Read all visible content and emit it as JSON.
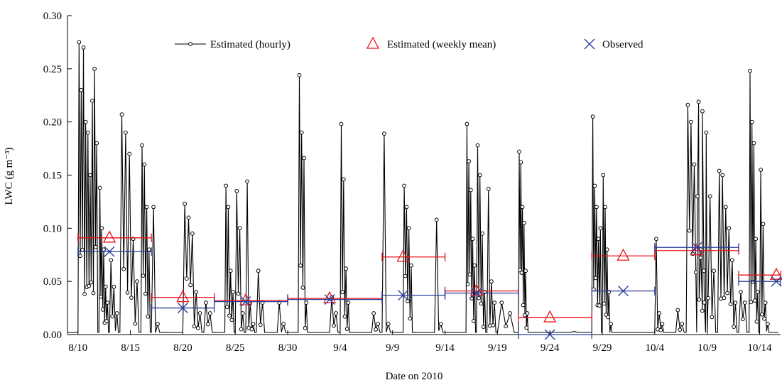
{
  "chart_data": {
    "type": "line",
    "xlabel": "Date on 2010",
    "ylabel": "LWC (g m⁻³)",
    "ylim": [
      0,
      0.3
    ],
    "xlim": [
      "2010-08-09",
      "2010-10-16"
    ],
    "yticks": [
      0.0,
      0.05,
      0.1,
      0.15,
      0.2,
      0.25,
      0.3
    ],
    "ytick_labels": [
      "0.00",
      "0.05",
      "0.10",
      "0.15",
      "0.20",
      "0.25",
      "0.30"
    ],
    "xticks": [
      "2010-08-10",
      "2010-08-15",
      "2010-08-20",
      "2010-08-25",
      "2010-08-30",
      "2010-09-04",
      "2010-09-09",
      "2010-09-14",
      "2010-09-19",
      "2010-09-24",
      "2010-09-29",
      "2010-10-04",
      "2010-10-09",
      "2010-10-14"
    ],
    "xtick_labels": [
      "8/10",
      "8/15",
      "8/20",
      "8/25",
      "8/30",
      "9/4",
      "9/9",
      "9/14",
      "9/19",
      "9/24",
      "9/29",
      "10/4",
      "10/9",
      "10/14"
    ],
    "grid": false,
    "legend_position": "top",
    "colors": {
      "hourly": "#000000",
      "weekly": "#e8121b",
      "observed": "#2a3f9c"
    },
    "series": [
      {
        "name": "Estimated (hourly)",
        "type": "line",
        "bursts": [
          {
            "start": "2010-08-10",
            "end": "2010-08-12",
            "peaks": [
              0.275,
              0.23,
              0.27,
              0.2,
              0.19,
              0.15,
              0.22,
              0.25,
              0.18
            ]
          },
          {
            "start": "2010-08-12",
            "end": "2010-08-13",
            "peaks": [
              0.138,
              0.1,
              0.08,
              0.045,
              0.03
            ]
          },
          {
            "start": "2010-08-13",
            "end": "2010-08-14",
            "peaks": [
              0.07,
              0.045,
              0.02
            ]
          },
          {
            "start": "2010-08-14",
            "end": "2010-08-16",
            "peaks": [
              0.207,
              0.19,
              0.17,
              0.09,
              0.05
            ]
          },
          {
            "start": "2010-08-16",
            "end": "2010-08-17",
            "peaks": [
              0.178,
              0.16,
              0.12,
              0.08
            ]
          },
          {
            "start": "2010-08-17",
            "end": "2010-08-18",
            "peaks": [
              0.12,
              0.01
            ]
          },
          {
            "start": "2010-08-20",
            "end": "2010-08-22",
            "peaks": [
              0.123,
              0.11,
              0.095,
              0.04,
              0.02
            ]
          },
          {
            "start": "2010-08-22",
            "end": "2010-08-23",
            "peaks": [
              0.03,
              0.02
            ]
          },
          {
            "start": "2010-08-24",
            "end": "2010-08-25",
            "peaks": [
              0.14,
              0.12,
              0.06,
              0.04
            ]
          },
          {
            "start": "2010-08-25",
            "end": "2010-08-26",
            "peaks": [
              0.135,
              0.1,
              0.02
            ]
          },
          {
            "start": "2010-08-26",
            "end": "2010-08-27",
            "peaks": [
              0.144,
              0.03,
              0.01
            ]
          },
          {
            "start": "2010-08-27",
            "end": "2010-08-28",
            "peaks": [
              0.06,
              0.03
            ]
          },
          {
            "start": "2010-08-29",
            "end": "2010-08-30",
            "peaks": [
              0.03,
              0.01
            ]
          },
          {
            "start": "2010-08-31",
            "end": "2010-09-01",
            "peaks": [
              0.244,
              0.19,
              0.166,
              0.03
            ]
          },
          {
            "start": "2010-09-03",
            "end": "2010-09-04",
            "peaks": [
              0.035,
              0.02
            ]
          },
          {
            "start": "2010-09-04",
            "end": "2010-09-05",
            "peaks": [
              0.198,
              0.146,
              0.062,
              0.03
            ]
          },
          {
            "start": "2010-09-07",
            "end": "2010-09-08",
            "peaks": [
              0.02,
              0.01
            ]
          },
          {
            "start": "2010-09-08",
            "end": "2010-09-09",
            "peaks": [
              0.189,
              0.01
            ]
          },
          {
            "start": "2010-09-10",
            "end": "2010-09-11",
            "peaks": [
              0.14,
              0.12,
              0.1,
              0.065
            ]
          },
          {
            "start": "2010-09-13",
            "end": "2010-09-14",
            "peaks": [
              0.108,
              0.01
            ]
          },
          {
            "start": "2010-09-16",
            "end": "2010-09-17",
            "peaks": [
              0.198,
              0.163,
              0.136,
              0.09,
              0.065
            ]
          },
          {
            "start": "2010-09-17",
            "end": "2010-09-18",
            "peaks": [
              0.178,
              0.15,
              0.095,
              0.04
            ]
          },
          {
            "start": "2010-09-18",
            "end": "2010-09-19",
            "peaks": [
              0.137,
              0.05,
              0.03
            ]
          },
          {
            "start": "2010-09-19",
            "end": "2010-09-21",
            "peaks": [
              0.03,
              0.02
            ]
          },
          {
            "start": "2010-09-21",
            "end": "2010-09-22",
            "peaks": [
              0.172,
              0.162,
              0.12,
              0.105,
              0.06,
              0.02
            ]
          },
          {
            "start": "2010-09-26",
            "end": "2010-09-27",
            "peaks": [
              0.003
            ]
          },
          {
            "start": "2010-09-28",
            "end": "2010-09-29",
            "peaks": [
              0.205,
              0.14,
              0.12,
              0.09,
              0.1
            ]
          },
          {
            "start": "2010-09-29",
            "end": "2010-09-30",
            "peaks": [
              0.15,
              0.12,
              0.08,
              0.04,
              0.01
            ]
          },
          {
            "start": "2010-10-04",
            "end": "2010-10-05",
            "peaks": [
              0.09,
              0.02,
              0.01
            ]
          },
          {
            "start": "2010-10-06",
            "end": "2010-10-07",
            "peaks": [
              0.023,
              0.01
            ]
          },
          {
            "start": "2010-10-07",
            "end": "2010-10-09",
            "peaks": [
              0.216,
              0.2,
              0.16,
              0.13,
              0.08,
              0.06
            ]
          },
          {
            "start": "2010-10-08",
            "end": "2010-10-10",
            "peaks": [
              0.219,
              0.21,
              0.19,
              0.13,
              0.06
            ]
          },
          {
            "start": "2010-10-10",
            "end": "2010-10-12",
            "peaks": [
              0.154,
              0.15,
              0.12,
              0.1,
              0.07,
              0.03
            ]
          },
          {
            "start": "2010-10-12",
            "end": "2010-10-13",
            "peaks": [
              0.04,
              0.03
            ]
          },
          {
            "start": "2010-10-13",
            "end": "2010-10-14",
            "peaks": [
              0.248,
              0.2,
              0.18,
              0.09,
              0.04
            ]
          },
          {
            "start": "2010-10-14",
            "end": "2010-10-15",
            "peaks": [
              0.155,
              0.104,
              0.03,
              0.01
            ]
          }
        ]
      },
      {
        "name": "Estimated (weekly mean)",
        "type": "scatter",
        "marker": "triangle",
        "points": [
          {
            "x": "2010-08-13",
            "from": "2010-08-10",
            "to": "2010-08-17",
            "y": 0.091
          },
          {
            "x": "2010-08-20",
            "from": "2010-08-17",
            "to": "2010-08-23",
            "y": 0.035
          },
          {
            "x": "2010-08-26",
            "from": "2010-08-23",
            "to": "2010-08-30",
            "y": 0.032
          },
          {
            "x": "2010-09-03",
            "from": "2010-08-30",
            "to": "2010-09-08",
            "y": 0.034
          },
          {
            "x": "2010-09-10",
            "from": "2010-09-08",
            "to": "2010-09-14",
            "y": 0.073
          },
          {
            "x": "2010-09-17",
            "from": "2010-09-14",
            "to": "2010-09-21",
            "y": 0.041
          },
          {
            "x": "2010-09-24",
            "from": "2010-09-21",
            "to": "2010-09-28",
            "y": 0.016
          },
          {
            "x": "2010-10-01",
            "from": "2010-09-28",
            "to": "2010-10-04",
            "y": 0.074
          },
          {
            "x": "2010-10-08",
            "from": "2010-10-04",
            "to": "2010-10-12",
            "y": 0.079
          },
          {
            "x": "2010-10-16",
            "from": "2010-10-12",
            "to": "2010-10-16",
            "y": 0.056
          }
        ]
      },
      {
        "name": "Observed",
        "type": "scatter",
        "marker": "x",
        "points": [
          {
            "x": "2010-08-13",
            "from": "2010-08-10",
            "to": "2010-08-17",
            "y": 0.078
          },
          {
            "x": "2010-08-20",
            "from": "2010-08-17",
            "to": "2010-08-23",
            "y": 0.025
          },
          {
            "x": "2010-08-26",
            "from": "2010-08-23",
            "to": "2010-08-30",
            "y": 0.031
          },
          {
            "x": "2010-09-03",
            "from": "2010-08-30",
            "to": "2010-09-08",
            "y": 0.033
          },
          {
            "x": "2010-09-10",
            "from": "2010-09-08",
            "to": "2010-09-14",
            "y": 0.037
          },
          {
            "x": "2010-09-17",
            "from": "2010-09-14",
            "to": "2010-09-21",
            "y": 0.039
          },
          {
            "x": "2010-09-24",
            "from": "2010-09-21",
            "to": "2010-09-28",
            "y": 0.0
          },
          {
            "x": "2010-10-01",
            "from": "2010-09-28",
            "to": "2010-10-04",
            "y": 0.041
          },
          {
            "x": "2010-10-08",
            "from": "2010-10-04",
            "to": "2010-10-12",
            "y": 0.082
          },
          {
            "x": "2010-10-16",
            "from": "2010-10-12",
            "to": "2010-10-16",
            "y": 0.05
          }
        ]
      }
    ]
  }
}
